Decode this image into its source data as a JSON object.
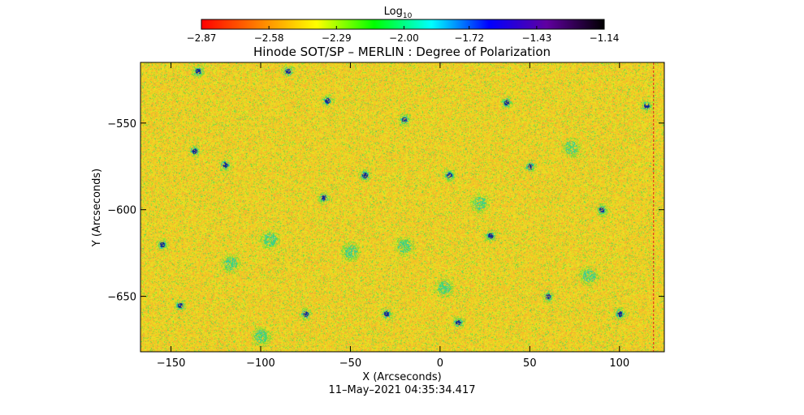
{
  "chart_data": {
    "type": "heatmap",
    "title": "Hinode SOT/SP – MERLIN : Degree of Polarization",
    "xlabel": "X (Arcseconds)",
    "ylabel": "Y (Arcseconds)",
    "timestamp": "11–May–2021 04:35:34.417",
    "xlim": [
      -167,
      125
    ],
    "ylim": [
      -682,
      -515
    ],
    "x_ticks": [
      -150,
      -100,
      -50,
      0,
      50,
      100
    ],
    "x_tick_labels": [
      "−150",
      "−100",
      "−50",
      "0",
      "50",
      "100"
    ],
    "y_ticks": [
      -550,
      -600,
      -650
    ],
    "y_tick_labels": [
      "−550",
      "−600",
      "−650"
    ],
    "colorbar": {
      "title_main": "Log",
      "title_sub": "10",
      "min": -2.87,
      "max": -1.14,
      "ticks": [
        -2.87,
        -2.58,
        -2.29,
        -2.0,
        -1.72,
        -1.43,
        -1.14
      ],
      "tick_labels": [
        "−2.87",
        "−2.58",
        "−2.29",
        "−2.00",
        "−1.72",
        "−1.43",
        "−1.14"
      ],
      "colors": [
        "#ff0000",
        "#ff8000",
        "#ffff00",
        "#00ff00",
        "#00ffff",
        "#0000ff",
        "#6000a0",
        "#000000"
      ]
    },
    "background_level": -2.45,
    "field_colors": {
      "base": "#f2d21c",
      "orange": "#f5a23a",
      "yellow": "#e6e82a",
      "green": "#62dd3c",
      "cyan": "#20c8c0",
      "blue": "#1238b0"
    },
    "features": [
      {
        "x": -95,
        "y": -617,
        "level": -1.55
      },
      {
        "x": -117,
        "y": -631,
        "level": -1.5
      },
      {
        "x": -50,
        "y": -624,
        "level": -1.6
      },
      {
        "x": -20,
        "y": -621,
        "level": -1.65
      },
      {
        "x": 2,
        "y": -645,
        "level": -1.6
      },
      {
        "x": 73,
        "y": -564,
        "level": -1.55
      },
      {
        "x": 22,
        "y": -596,
        "level": -1.6
      },
      {
        "x": 83,
        "y": -638,
        "level": -1.6
      },
      {
        "x": -100,
        "y": -673,
        "level": -1.55
      },
      {
        "x": -137,
        "y": -566,
        "level": -1.8
      },
      {
        "x": 28,
        "y": -615,
        "level": -1.85
      },
      {
        "x": -42,
        "y": -580,
        "level": -1.85
      },
      {
        "x": -63,
        "y": -537,
        "level": -1.8
      },
      {
        "x": 37,
        "y": -538,
        "level": -1.75
      },
      {
        "x": -120,
        "y": -574,
        "level": -1.9
      },
      {
        "x": -145,
        "y": -655,
        "level": -1.9
      },
      {
        "x": 10,
        "y": -665,
        "level": -1.85
      },
      {
        "x": 50,
        "y": -575,
        "level": -1.95
      },
      {
        "x": 90,
        "y": -600,
        "level": -1.95
      },
      {
        "x": -75,
        "y": -660,
        "level": -1.95
      },
      {
        "x": -20,
        "y": -548,
        "level": -1.95
      },
      {
        "x": 115,
        "y": -540,
        "level": -1.9
      },
      {
        "x": -135,
        "y": -520,
        "level": -1.85
      },
      {
        "x": -65,
        "y": -593,
        "level": -1.9
      },
      {
        "x": 5,
        "y": -580,
        "level": -1.95
      },
      {
        "x": -30,
        "y": -660,
        "level": -1.9
      },
      {
        "x": 60,
        "y": -650,
        "level": -1.9
      },
      {
        "x": -155,
        "y": -620,
        "level": -1.95
      },
      {
        "x": 100,
        "y": -660,
        "level": -1.9
      },
      {
        "x": -85,
        "y": -520,
        "level": -1.9
      }
    ],
    "marker_line_x": 119
  }
}
